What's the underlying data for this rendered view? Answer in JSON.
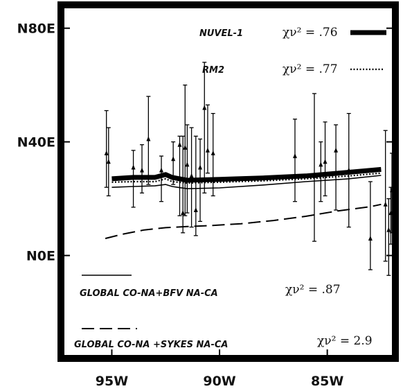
{
  "chart_data": {
    "type": "line",
    "title": "",
    "xlabel": "",
    "ylabel": "",
    "xlim": [
      97.2,
      82.0
    ],
    "ylim": [
      -35,
      87
    ],
    "x_ticks": [
      {
        "value": 95,
        "label": "95W"
      },
      {
        "value": 90,
        "label": "90W"
      },
      {
        "value": 85,
        "label": "85W"
      }
    ],
    "y_ticks": [
      {
        "value": 80,
        "label": "N80E"
      },
      {
        "value": 40,
        "label": "N40E"
      },
      {
        "value": 0,
        "label": "N0E"
      }
    ],
    "legend": [
      {
        "id": "nuvel1",
        "label": "NUVEL-1",
        "chi": "χν² = .76",
        "style": "thick"
      },
      {
        "id": "rm2",
        "label": "RM2",
        "chi": "χν² = .77",
        "style": "dotted"
      },
      {
        "id": "bfv",
        "label": "GLOBAL CO-NA+BFV NA-CA",
        "chi": "χν² = .87",
        "style": "solid"
      },
      {
        "id": "sykes",
        "label": "GLOBAL CO-NA +SYKES NA-CA",
        "chi": "χν² = 2.9",
        "style": "dashed"
      }
    ],
    "series": [
      {
        "id": "nuvel1",
        "style": "thick",
        "x": [
          95.0,
          94.0,
          93.0,
          92.5,
          92.2,
          91.5,
          90.0,
          88.0,
          86.0,
          84.0,
          82.5
        ],
        "y": [
          27.0,
          27.5,
          27.5,
          28.5,
          27.5,
          26.5,
          26.8,
          27.3,
          28.0,
          29.3,
          30.3
        ]
      },
      {
        "id": "rm2",
        "style": "dotted",
        "x": [
          95.0,
          94.0,
          93.0,
          92.5,
          92.2,
          91.5,
          90.0,
          88.0,
          86.0,
          84.0,
          82.5
        ],
        "y": [
          25.8,
          26.0,
          26.0,
          27.0,
          26.0,
          25.5,
          25.8,
          26.3,
          27.0,
          28.0,
          29.0
        ]
      },
      {
        "id": "bfv",
        "style": "solid",
        "x": [
          95.0,
          94.0,
          93.0,
          92.5,
          92.2,
          91.5,
          90.0,
          88.0,
          86.0,
          84.0,
          82.5
        ],
        "y": [
          24.0,
          24.3,
          24.5,
          25.0,
          24.3,
          23.5,
          23.8,
          24.8,
          26.0,
          27.0,
          28.2
        ]
      },
      {
        "id": "sykes",
        "style": "dashed",
        "x": [
          95.3,
          94.5,
          93.5,
          92.5,
          91.5,
          90.5,
          89.0,
          87.5,
          86.0,
          84.5,
          83.0,
          82.5
        ],
        "y": [
          6.0,
          7.5,
          9.0,
          9.8,
          10.2,
          10.5,
          11.2,
          12.3,
          13.8,
          15.7,
          17.2,
          18.0
        ]
      }
    ],
    "observations": [
      {
        "x": 95.25,
        "y": 36,
        "lo": 24,
        "hi": 51
      },
      {
        "x": 95.15,
        "y": 33,
        "lo": 21,
        "hi": 45
      },
      {
        "x": 94.0,
        "y": 31,
        "lo": 17,
        "hi": 37
      },
      {
        "x": 93.6,
        "y": 30,
        "lo": 22,
        "hi": 39
      },
      {
        "x": 93.3,
        "y": 41,
        "lo": 25,
        "hi": 56
      },
      {
        "x": 92.7,
        "y": 30,
        "lo": 19,
        "hi": 35
      },
      {
        "x": 92.15,
        "y": 34,
        "lo": 25,
        "hi": 40
      },
      {
        "x": 91.85,
        "y": 39,
        "lo": 14,
        "hi": 42
      },
      {
        "x": 91.7,
        "y": 15,
        "lo": 8,
        "hi": 42
      },
      {
        "x": 91.6,
        "y": 38,
        "lo": 14,
        "hi": 60
      },
      {
        "x": 91.5,
        "y": 32,
        "lo": 15,
        "hi": 46
      },
      {
        "x": 91.3,
        "y": 28,
        "lo": 10,
        "hi": 45
      },
      {
        "x": 91.1,
        "y": 16,
        "lo": 7,
        "hi": 42
      },
      {
        "x": 90.9,
        "y": 31,
        "lo": 12,
        "hi": 41
      },
      {
        "x": 90.7,
        "y": 52,
        "lo": 22,
        "hi": 68
      },
      {
        "x": 90.55,
        "y": 37,
        "lo": 29,
        "hi": 53
      },
      {
        "x": 90.3,
        "y": 36,
        "lo": 21,
        "hi": 50
      },
      {
        "x": 86.5,
        "y": 35,
        "lo": 19,
        "hi": 48
      },
      {
        "x": 85.6,
        "y": 28,
        "lo": 5,
        "hi": 57
      },
      {
        "x": 85.3,
        "y": 32,
        "lo": 19,
        "hi": 40
      },
      {
        "x": 85.1,
        "y": 33,
        "lo": 21,
        "hi": 47
      },
      {
        "x": 84.6,
        "y": 37,
        "lo": 16,
        "hi": 46
      },
      {
        "x": 84.0,
        "y": 30,
        "lo": 10,
        "hi": 50
      },
      {
        "x": 83.0,
        "y": 6,
        "lo": -5,
        "hi": 26
      },
      {
        "x": 82.3,
        "y": 18,
        "lo": -2,
        "hi": 44
      },
      {
        "x": 82.15,
        "y": 9,
        "lo": -7,
        "hi": 20
      },
      {
        "x": 82.05,
        "y": 15,
        "lo": 4,
        "hi": 24
      },
      {
        "x": 82.0,
        "y": 23,
        "lo": 8,
        "hi": 36
      },
      {
        "x": 81.3,
        "y": 28,
        "lo": 13,
        "hi": 43
      }
    ],
    "grid": false
  }
}
